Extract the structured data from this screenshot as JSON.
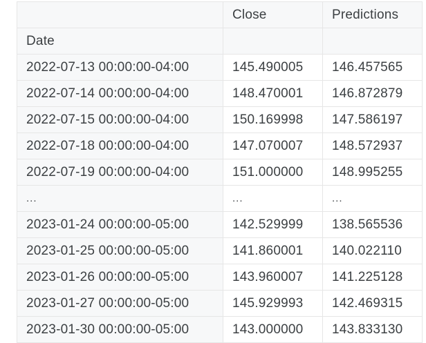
{
  "table": {
    "columns": [
      "",
      "Close",
      "Predictions"
    ],
    "index_name": "Date",
    "rows": [
      [
        "2022-07-13 00:00:00-04:00",
        "145.490005",
        "146.457565"
      ],
      [
        "2022-07-14 00:00:00-04:00",
        "148.470001",
        "146.872879"
      ],
      [
        "2022-07-15 00:00:00-04:00",
        "150.169998",
        "147.586197"
      ],
      [
        "2022-07-18 00:00:00-04:00",
        "147.070007",
        "148.572937"
      ],
      [
        "2022-07-19 00:00:00-04:00",
        "151.000000",
        "148.995255"
      ],
      [
        "...",
        "...",
        "..."
      ],
      [
        "2023-01-24 00:00:00-05:00",
        "142.529999",
        "138.565536"
      ],
      [
        "2023-01-25 00:00:00-05:00",
        "141.860001",
        "140.022110"
      ],
      [
        "2023-01-26 00:00:00-05:00",
        "143.960007",
        "141.225128"
      ],
      [
        "2023-01-27 00:00:00-05:00",
        "145.929993",
        "142.469315"
      ],
      [
        "2023-01-30 00:00:00-05:00",
        "143.000000",
        "143.833130"
      ]
    ]
  }
}
